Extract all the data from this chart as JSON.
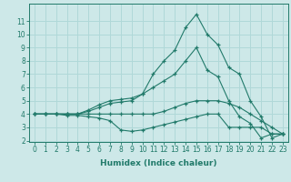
{
  "xlabel": "Humidex (Indice chaleur)",
  "x_values": [
    0,
    1,
    2,
    3,
    4,
    5,
    6,
    7,
    8,
    9,
    10,
    11,
    12,
    13,
    14,
    15,
    16,
    17,
    18,
    19,
    20,
    21,
    22,
    23
  ],
  "series": [
    [
      4.0,
      4.0,
      4.0,
      3.9,
      3.9,
      3.8,
      3.7,
      3.5,
      2.8,
      2.7,
      2.8,
      3.0,
      3.2,
      3.4,
      3.6,
      3.8,
      4.0,
      4.0,
      3.0,
      3.0,
      3.0,
      3.0,
      2.5,
      2.5
    ],
    [
      4.0,
      4.0,
      4.0,
      4.0,
      4.0,
      4.0,
      4.0,
      4.0,
      4.0,
      4.0,
      4.0,
      4.0,
      4.2,
      4.5,
      4.8,
      5.0,
      5.0,
      5.0,
      4.8,
      4.5,
      4.0,
      3.5,
      3.0,
      2.5
    ],
    [
      4.0,
      4.0,
      4.0,
      4.0,
      4.0,
      4.3,
      4.7,
      5.0,
      5.1,
      5.2,
      5.5,
      6.0,
      6.5,
      7.0,
      8.0,
      9.0,
      7.3,
      6.8,
      5.0,
      3.8,
      3.3,
      2.2,
      2.5,
      2.5
    ],
    [
      4.0,
      4.0,
      4.0,
      4.0,
      4.0,
      4.2,
      4.5,
      4.8,
      4.9,
      5.0,
      5.5,
      7.0,
      8.0,
      8.8,
      10.5,
      11.5,
      10.0,
      9.2,
      7.5,
      7.0,
      5.0,
      3.8,
      2.2,
      2.5
    ]
  ],
  "line_color": "#217a6a",
  "marker": "+",
  "bg_color": "#cde8e8",
  "grid_color": "#b0d8d8",
  "ylim": [
    2,
    12
  ],
  "xlim": [
    -0.5,
    23.5
  ],
  "yticks": [
    2,
    3,
    4,
    5,
    6,
    7,
    8,
    9,
    10,
    11
  ],
  "xticks": [
    0,
    1,
    2,
    3,
    4,
    5,
    6,
    7,
    8,
    9,
    10,
    11,
    12,
    13,
    14,
    15,
    16,
    17,
    18,
    19,
    20,
    21,
    22,
    23
  ],
  "tick_fontsize": 5.5,
  "xlabel_fontsize": 6.5
}
